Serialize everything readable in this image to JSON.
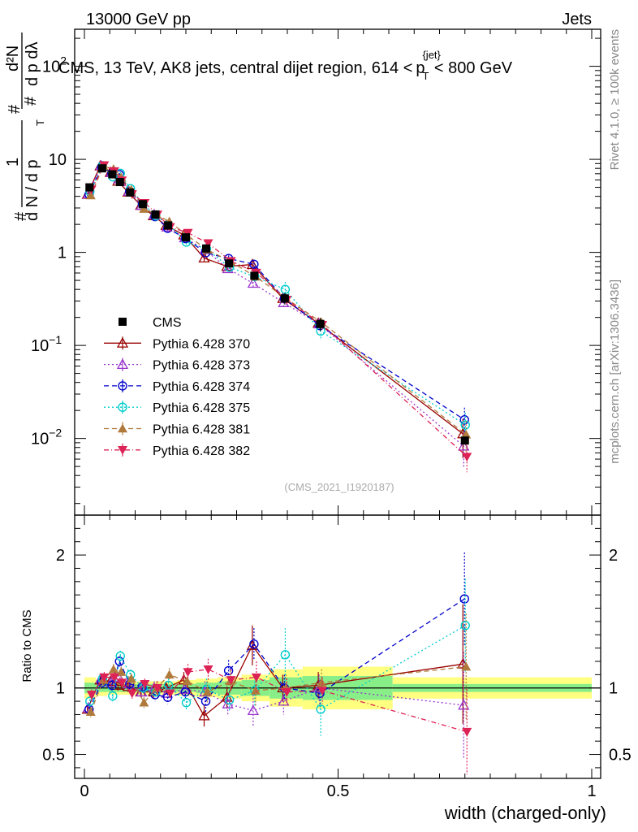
{
  "header": {
    "left": "13000 GeV pp",
    "right": "Jets"
  },
  "side_labels": {
    "top": "Rivet 4.1.0, ≥ 100k events",
    "bottom": "mcplots.cern.ch [arXiv:1306.3436]"
  },
  "chart_data": {
    "type": "line",
    "title": "CMS, 13 TeV, AK8 jets, central dijet region, 614 < p_T^{jet} < 800 GeV",
    "title_parts": {
      "main": "CMS, 13 TeV, AK8 jets, central dijet region, 614 <",
      "p": "p",
      "sub": "T",
      "sup": "{jet}",
      "end": "< 800 GeV"
    },
    "ylabel_main": "1/N dN/dp_T d^2N/dp_T dλ",
    "ylabel_parts": {
      "hash": "#",
      "one": "1",
      "dn": "d N / d p",
      "sub": "T",
      "num": "d²N",
      "den": "d p  dλ"
    },
    "xlabel": "width (charged-only)",
    "ylabel_ratio": "Ratio to CMS",
    "watermark": "(CMS_2021_I1920187)",
    "x": [
      0.01,
      0.035,
      0.055,
      0.07,
      0.09,
      0.115,
      0.14,
      0.165,
      0.2,
      0.24,
      0.285,
      0.335,
      0.395,
      0.465,
      0.75
    ],
    "xlim": [
      0,
      1
    ],
    "ylim_main": [
      0.0015,
      250
    ],
    "ylim_ratio": [
      0.32,
      2.3
    ],
    "x_ticks": [
      {
        "v": 0,
        "label": "0"
      },
      {
        "v": 0.5,
        "label": "0.5"
      },
      {
        "v": 1,
        "label": "1"
      }
    ],
    "y_ticks_main": [
      {
        "v": 0.01,
        "base": "10",
        "exp": "−2"
      },
      {
        "v": 0.1,
        "base": "10",
        "exp": "−1"
      },
      {
        "v": 1,
        "base": "1",
        "exp": ""
      },
      {
        "v": 10,
        "base": "10",
        "exp": ""
      },
      {
        "v": 100,
        "base": "10",
        "exp": "2"
      }
    ],
    "y_ticks_ratio": [
      {
        "v": 0.5,
        "label": "0.5"
      },
      {
        "v": 1,
        "label": "1"
      },
      {
        "v": 2,
        "label": "2"
      }
    ],
    "data": {
      "name": "CMS",
      "color": "#000000",
      "values": [
        5.0,
        8.0,
        6.9,
        5.7,
        4.4,
        3.3,
        2.55,
        1.95,
        1.45,
        1.1,
        0.76,
        0.56,
        0.32,
        0.17,
        0.0095
      ],
      "band_rel": [
        0.08,
        0.06,
        0.05,
        0.05,
        0.05,
        0.05,
        0.05,
        0.05,
        0.06,
        0.07,
        0.08,
        0.1,
        0.14,
        0.16,
        0.08
      ],
      "band_stat_rel": [
        0.04,
        0.03,
        0.03,
        0.03,
        0.03,
        0.03,
        0.03,
        0.03,
        0.03,
        0.04,
        0.05,
        0.06,
        0.08,
        0.09,
        0.03
      ]
    },
    "series": [
      {
        "name": "Pythia 6.428 370",
        "color": "#990000",
        "dash": "",
        "marker": "tri-open",
        "ratio": [
          0.84,
          1.06,
          1.05,
          1.02,
          1.01,
          0.97,
          0.97,
          1.0,
          1.06,
          0.79,
          0.93,
          1.32,
          1.0,
          1.02,
          1.18
        ],
        "err": [
          0.04,
          0.04,
          0.04,
          0.04,
          0.04,
          0.04,
          0.05,
          0.05,
          0.06,
          0.08,
          0.08,
          0.15,
          0.1,
          0.1,
          0.45
        ]
      },
      {
        "name": "Pythia 6.428 373",
        "color": "#9933cc",
        "dash": "2,3",
        "marker": "tri-open",
        "ratio": [
          0.85,
          1.07,
          1.04,
          1.08,
          1.03,
          0.97,
          1.0,
          0.96,
          0.99,
          0.97,
          0.88,
          0.83,
          0.9,
          1.0,
          0.87
        ],
        "err": [
          0.04,
          0.04,
          0.04,
          0.04,
          0.04,
          0.04,
          0.05,
          0.05,
          0.06,
          0.08,
          0.08,
          0.12,
          0.1,
          0.1,
          0.4
        ]
      },
      {
        "name": "Pythia 6.428 374",
        "color": "#0000cc",
        "dash": "6,4",
        "marker": "circ-open",
        "ratio": [
          0.84,
          1.04,
          1.02,
          1.2,
          1.03,
          1.01,
          0.95,
          0.93,
          0.97,
          0.9,
          1.13,
          1.33,
          1.0,
          0.96,
          1.67
        ],
        "err": [
          0.04,
          0.04,
          0.04,
          0.04,
          0.04,
          0.04,
          0.05,
          0.05,
          0.06,
          0.08,
          0.08,
          0.12,
          0.1,
          0.1,
          0.35
        ]
      },
      {
        "name": "Pythia 6.428 375",
        "color": "#00cccc",
        "dash": "2,3",
        "marker": "circ-open",
        "ratio": [
          0.9,
          1.07,
          0.94,
          1.24,
          1.1,
          1.0,
          0.97,
          1.02,
          0.89,
          0.99,
          0.91,
          0.98,
          1.25,
          0.84,
          1.47
        ],
        "err": [
          0.04,
          0.04,
          0.04,
          0.04,
          0.04,
          0.04,
          0.05,
          0.05,
          0.06,
          0.08,
          0.08,
          0.12,
          0.2,
          0.2,
          0.35
        ]
      },
      {
        "name": "Pythia 6.428 381",
        "color": "#b07a3c",
        "dash": "6,4",
        "marker": "tri-fill",
        "ratio": [
          0.82,
          1.06,
          1.14,
          1.12,
          1.07,
          0.89,
          1.0,
          1.1,
          1.05,
          0.97,
          1.05,
          0.98,
          1.0,
          1.04,
          1.16
        ],
        "err": [
          0.04,
          0.04,
          0.04,
          0.04,
          0.04,
          0.04,
          0.05,
          0.05,
          0.06,
          0.08,
          0.08,
          0.12,
          0.1,
          0.1,
          0.4
        ]
      },
      {
        "name": "Pythia 6.428 382",
        "color": "#dd2255",
        "dash": "6,3,1,3",
        "marker": "tri-down-fill",
        "ratio": [
          0.95,
          1.08,
          1.08,
          1.04,
          0.96,
          1.03,
          1.0,
          0.96,
          1.12,
          1.14,
          1.06,
          1.08,
          0.97,
          0.98,
          0.67
        ],
        "err": [
          0.04,
          0.04,
          0.04,
          0.04,
          0.04,
          0.04,
          0.05,
          0.05,
          0.06,
          0.08,
          0.08,
          0.12,
          0.1,
          0.1,
          0.32
        ]
      }
    ]
  }
}
